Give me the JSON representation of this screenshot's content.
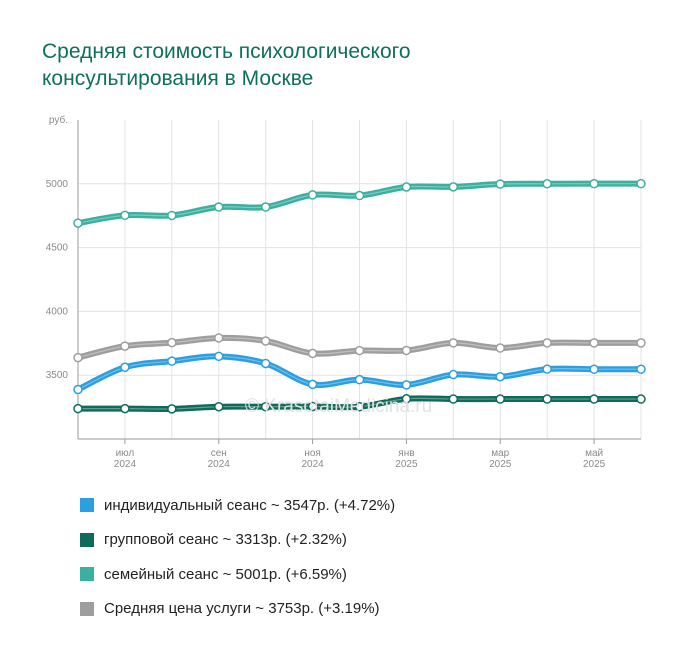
{
  "title_lines": [
    "Средняя стоимость психологического",
    "консультирования в Москве"
  ],
  "watermark": "© KrasotaiMedicina.ru",
  "chart_data": {
    "type": "line",
    "title": "Средняя стоимость психологического консультирования в Москве",
    "ylabel": "руб.",
    "ylim": [
      3000,
      5500
    ],
    "yticks": [
      {
        "value": 3500,
        "label": "3500"
      },
      {
        "value": 4000,
        "label": "4000"
      },
      {
        "value": 4500,
        "label": "4500"
      },
      {
        "value": 5000,
        "label": "5000"
      }
    ],
    "x": [
      "2024-05",
      "2024-06",
      "2024-07",
      "2024-08",
      "2024-09",
      "2024-10",
      "2024-11",
      "2024-12",
      "2025-01",
      "2025-02",
      "2025-03",
      "2025-04",
      "2025-05"
    ],
    "xticks": [
      {
        "index": 1,
        "line1": "июл",
        "line2": "2024"
      },
      {
        "index": 3,
        "line1": "сен",
        "line2": "2024"
      },
      {
        "index": 5,
        "line1": "ноя",
        "line2": "2024"
      },
      {
        "index": 7,
        "line1": "янв",
        "line2": "2025"
      },
      {
        "index": 9,
        "line1": "мар",
        "line2": "2025"
      },
      {
        "index": 11,
        "line1": "май",
        "line2": "2025"
      }
    ],
    "grid": true,
    "legend_position": "bottom",
    "series": [
      {
        "name": "индивидуальный сеанс",
        "color": "#2b9fe0",
        "values": [
          3388,
          3562,
          3610,
          3648,
          3592,
          3428,
          3465,
          3424,
          3505,
          3488,
          3548,
          3547,
          3547
        ]
      },
      {
        "name": "групповой сеанс",
        "color": "#0e6b5c",
        "values": [
          3238,
          3238,
          3236,
          3253,
          3253,
          3255,
          3253,
          3315,
          3313,
          3313,
          3313,
          3313,
          3313
        ]
      },
      {
        "name": "семейный сеанс",
        "color": "#3ab0a0",
        "values": [
          4692,
          4753,
          4752,
          4818,
          4818,
          4913,
          4908,
          4975,
          4976,
          4998,
          5000,
          5001,
          5001
        ]
      },
      {
        "name": "Средняя цена услуги",
        "color": "#9e9e9e",
        "values": [
          3638,
          3728,
          3755,
          3792,
          3768,
          3671,
          3693,
          3694,
          3753,
          3713,
          3753,
          3753,
          3753
        ]
      }
    ]
  },
  "legend": [
    {
      "label": "индивидуальный сеанс ~ 3547р. (+4.72%)",
      "color": "#2b9fe0"
    },
    {
      "label": "групповой сеанс ~ 3313р. (+2.32%)",
      "color": "#0e6b5c"
    },
    {
      "label": "семейный сеанс ~ 5001р. (+6.59%)",
      "color": "#3ab0a0"
    },
    {
      "label": "Средняя цена услуги ~ 3753р. (+3.19%)",
      "color": "#9e9e9e"
    }
  ]
}
